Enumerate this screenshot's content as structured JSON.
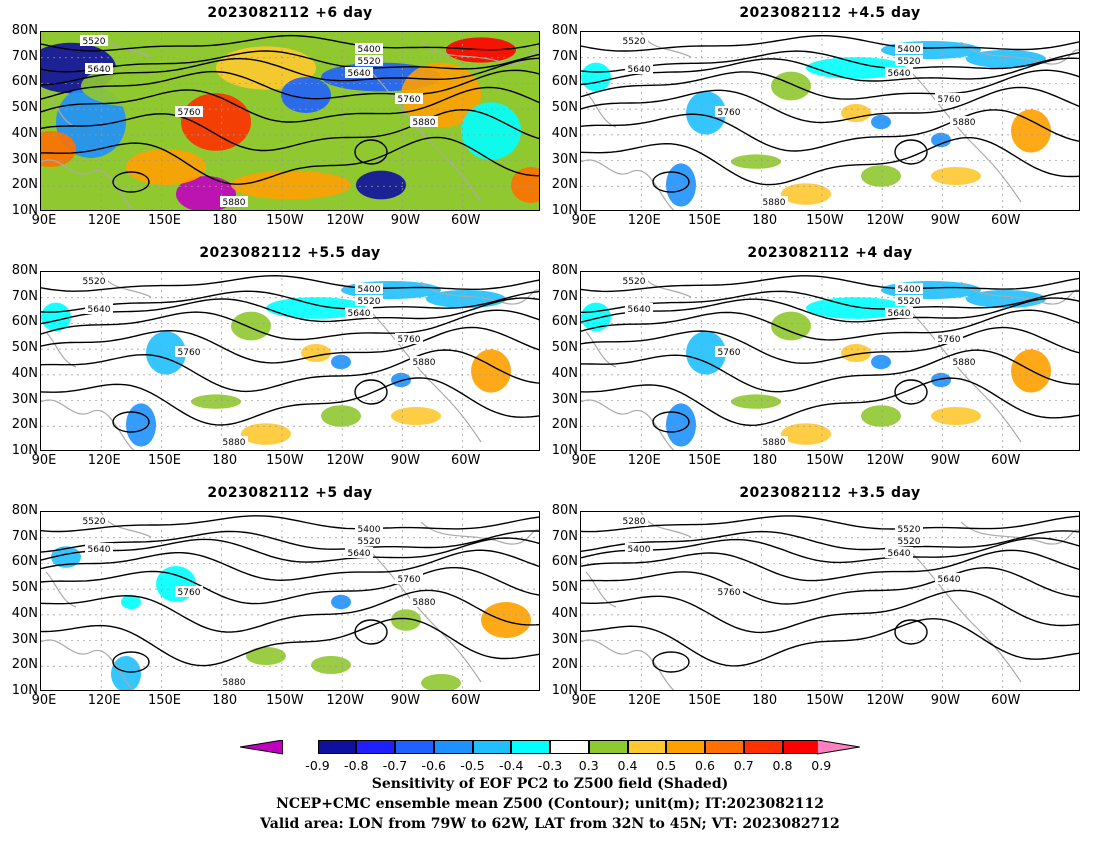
{
  "panels": [
    {
      "title": "2023082112  +6 day",
      "contours": [
        "5520",
        "5640",
        "5400",
        "5520",
        "5640",
        "5760",
        "5760",
        "5880",
        "5880"
      ],
      "shading": "full"
    },
    {
      "title": "2023082112  +4.5 day",
      "contours": [
        "5520",
        "5640",
        "5400",
        "5520",
        "5640",
        "5760",
        "5760",
        "5880",
        "5880"
      ],
      "shading": "patchy"
    },
    {
      "title": "2023082112  +5.5 day",
      "contours": [
        "5520",
        "5640",
        "5400",
        "5520",
        "5640",
        "5760",
        "5760",
        "5880",
        "5880"
      ],
      "shading": "patchy"
    },
    {
      "title": "2023082112  +4 day",
      "contours": [
        "5520",
        "5640",
        "5400",
        "5520",
        "5640",
        "5760",
        "5760",
        "5880",
        "5880"
      ],
      "shading": "patchy"
    },
    {
      "title": "2023082112  +5 day",
      "contours": [
        "5520",
        "5640",
        "5400",
        "5520",
        "5640",
        "5760",
        "5760",
        "5880",
        "5880"
      ],
      "shading": "light"
    },
    {
      "title": "2023082112  +3.5 day",
      "contours": [
        "5280",
        "5400",
        "5520",
        "5520",
        "5640",
        "5640",
        "5760"
      ],
      "shading": "none"
    }
  ],
  "axes": {
    "lat_labels": [
      "80N",
      "70N",
      "60N",
      "50N",
      "40N",
      "30N",
      "20N",
      "10N"
    ],
    "lon_labels": [
      "90E",
      "120E",
      "150E",
      "180",
      "150W",
      "120W",
      "90W",
      "60W"
    ]
  },
  "colorbar": {
    "labels": [
      "-0.9",
      "-0.8",
      "-0.7",
      "-0.6",
      "-0.5",
      "-0.4",
      "-0.3",
      "0.3",
      "0.4",
      "0.5",
      "0.6",
      "0.7",
      "0.8",
      "0.9"
    ],
    "colors": [
      "#c000c0",
      "#1010a0",
      "#2020ff",
      "#2060ff",
      "#1e90ff",
      "#20c0ff",
      "#00ffff",
      "#ffffff",
      "#90c830",
      "#ffc830",
      "#ffa000",
      "#ff7000",
      "#ff3000",
      "#ff0000",
      "#ff80c0"
    ]
  },
  "footer": {
    "line1": "Sensitivity of EOF PC2 to Z500 field (Shaded)",
    "line2": "NCEP+CMC ensemble mean Z500 (Contour); unit(m); IT:2023082112",
    "line3": "Valid area: LON from 79W to 62W, LAT from 32N to 45N; VT: 2023082712"
  }
}
